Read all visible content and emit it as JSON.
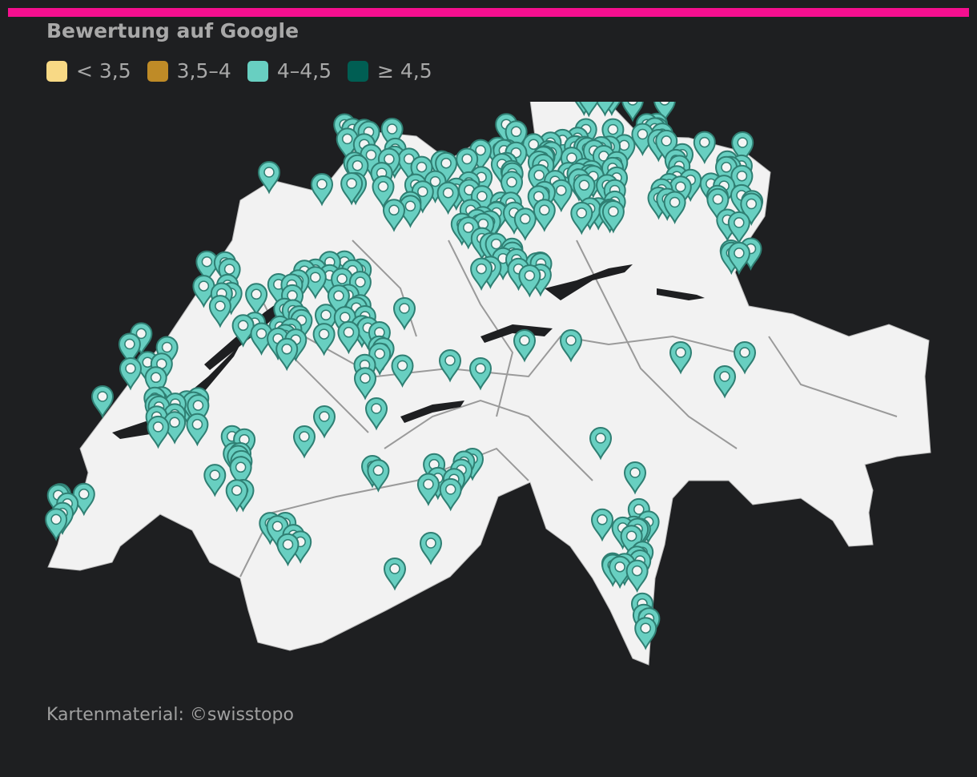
{
  "accent_color": "#f50f8f",
  "title": "Bewertung auf Google",
  "legend": [
    {
      "label": "< 3,5",
      "color": "#f8d985"
    },
    {
      "label": "3,5–4",
      "color": "#bf8b27"
    },
    {
      "label": "4–4,5",
      "color": "#68cfc1"
    },
    {
      "label": "≥ 4,5",
      "color": "#005e53"
    }
  ],
  "map": {
    "region": "Switzerland",
    "land_color": "#f2f2f2",
    "marker_icon": "map-pin-icon",
    "marker_category": "4–4,5"
  },
  "credit": "Kartenmaterial: ©swisstopo"
}
